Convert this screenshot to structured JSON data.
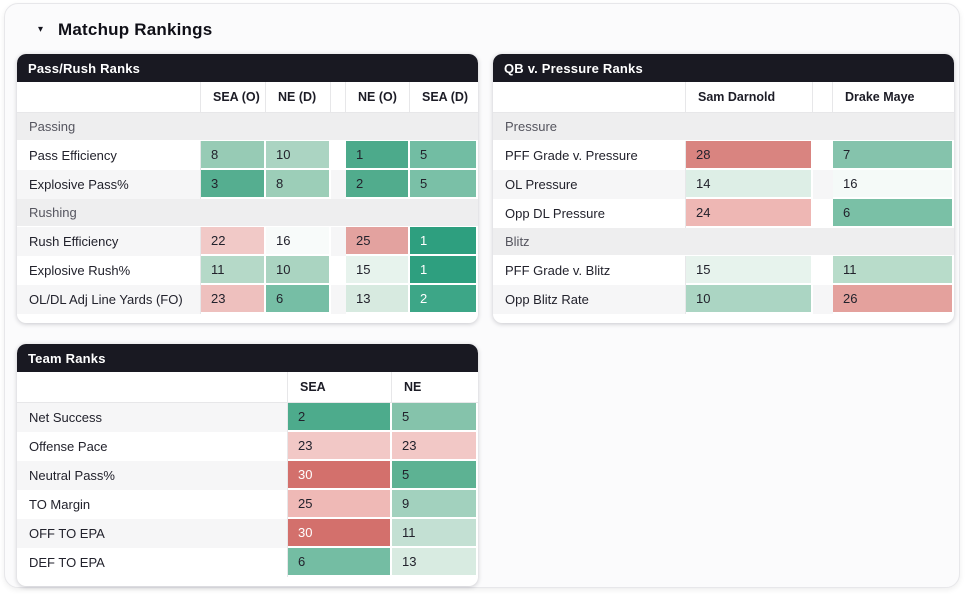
{
  "page": {
    "title": "Matchup Rankings",
    "collapse_icon": "▾"
  },
  "colors": {
    "table_header_bg": "#191922",
    "table_header_text": "#ffffff",
    "section_bg": "#eeeeef",
    "stripe_bg": "#f6f6f7",
    "default_cell_text": "#22222c",
    "white_cell_text": "#ffffff",
    "green_extreme": "#2e9f7f",
    "red_extreme": "#d3706c"
  },
  "tables": [
    {
      "title": "Pass/Rush Ranks",
      "columns": [
        {
          "label": "SEA (O)"
        },
        {
          "label": "NE (D)"
        },
        {
          "gap": true
        },
        {
          "label": "NE (O)"
        },
        {
          "label": "SEA (D)"
        }
      ],
      "rows": [
        {
          "type": "section",
          "label": "Passing"
        },
        {
          "type": "data",
          "label": "Pass Efficiency",
          "cells": [
            {
              "v": "8",
              "bg": "#97cbb5"
            },
            {
              "v": "10",
              "bg": "#abd4c2"
            },
            null,
            {
              "v": "1",
              "bg": "#4caa8b"
            },
            {
              "v": "5",
              "bg": "#72bda3"
            }
          ]
        },
        {
          "type": "data",
          "label": "Explosive Pass%",
          "cells": [
            {
              "v": "3",
              "bg": "#55ae90"
            },
            {
              "v": "8",
              "bg": "#9cceb8"
            },
            null,
            {
              "v": "2",
              "bg": "#51ac8d"
            },
            {
              "v": "5",
              "bg": "#7ac0a7"
            }
          ]
        },
        {
          "type": "section",
          "label": "Rushing"
        },
        {
          "type": "data",
          "label": "Rush Efficiency",
          "cells": [
            {
              "v": "22",
              "bg": "#f1c9c7"
            },
            {
              "v": "16",
              "bg": "#f8fbfa"
            },
            null,
            {
              "v": "25",
              "bg": "#e3a29f"
            },
            {
              "v": "1",
              "bg": "#2e9f7f",
              "fg": "#ffffff"
            }
          ]
        },
        {
          "type": "data",
          "label": "Explosive Rush%",
          "cells": [
            {
              "v": "11",
              "bg": "#b5d9c8"
            },
            {
              "v": "10",
              "bg": "#aad4c1"
            },
            null,
            {
              "v": "15",
              "bg": "#e7f3ed"
            },
            {
              "v": "1",
              "bg": "#2e9f7f",
              "fg": "#ffffff"
            }
          ]
        },
        {
          "type": "data",
          "label": "OL/DL Adj Line Yards (FO)",
          "cells": [
            {
              "v": "23",
              "bg": "#eec0be"
            },
            {
              "v": "6",
              "bg": "#76bea5"
            },
            null,
            {
              "v": "13",
              "bg": "#d7eae0"
            },
            {
              "v": "2",
              "bg": "#3da687",
              "fg": "#ffffff"
            }
          ]
        }
      ]
    },
    {
      "title": "QB v. Pressure Ranks",
      "columns": [
        {
          "label": "Sam Darnold"
        },
        {
          "gap": true
        },
        {
          "label": "Drake Maye"
        }
      ],
      "rows": [
        {
          "type": "section",
          "label": "Pressure"
        },
        {
          "type": "data",
          "label": "PFF Grade v. Pressure",
          "cells": [
            {
              "v": "28",
              "bg": "#d98480"
            },
            null,
            {
              "v": "7",
              "bg": "#85c3ac"
            }
          ]
        },
        {
          "type": "data",
          "label": "OL Pressure",
          "cells": [
            {
              "v": "14",
              "bg": "#ddeee6"
            },
            null,
            {
              "v": "16",
              "bg": "#f5faf8"
            }
          ]
        },
        {
          "type": "data",
          "label": "Opp DL Pressure",
          "cells": [
            {
              "v": "24",
              "bg": "#eeb7b4"
            },
            null,
            {
              "v": "6",
              "bg": "#7ac0a6"
            }
          ]
        },
        {
          "type": "section",
          "label": "Blitz"
        },
        {
          "type": "data",
          "label": "PFF Grade v. Blitz",
          "cells": [
            {
              "v": "15",
              "bg": "#e7f3ed"
            },
            null,
            {
              "v": "11",
              "bg": "#b8dcca"
            }
          ]
        },
        {
          "type": "data",
          "label": "Opp Blitz Rate",
          "cells": [
            {
              "v": "10",
              "bg": "#abd5c3"
            },
            null,
            {
              "v": "26",
              "bg": "#e4a19d"
            }
          ]
        }
      ]
    },
    {
      "title": "Team Ranks",
      "columns": [
        {
          "label": "SEA"
        },
        {
          "label": "NE"
        }
      ],
      "rows": [
        {
          "type": "data",
          "label": "Net Success",
          "cells": [
            {
              "v": "2",
              "bg": "#4dab8c"
            },
            {
              "v": "5",
              "bg": "#85c3ab"
            }
          ]
        },
        {
          "type": "data",
          "label": "Offense Pace",
          "cells": [
            {
              "v": "23",
              "bg": "#f2c8c6"
            },
            {
              "v": "23",
              "bg": "#f2c8c6"
            }
          ]
        },
        {
          "type": "data",
          "label": "Neutral Pass%",
          "cells": [
            {
              "v": "30",
              "bg": "#d3706c",
              "fg": "#ffffff"
            },
            {
              "v": "5",
              "bg": "#5db293"
            }
          ]
        },
        {
          "type": "data",
          "label": "TO Margin",
          "cells": [
            {
              "v": "25",
              "bg": "#efb9b6"
            },
            {
              "v": "9",
              "bg": "#a2d1be"
            }
          ]
        },
        {
          "type": "data",
          "label": "OFF TO EPA",
          "cells": [
            {
              "v": "30",
              "bg": "#d3706c",
              "fg": "#ffffff"
            },
            {
              "v": "11",
              "bg": "#c3e0d3"
            }
          ]
        },
        {
          "type": "data",
          "label": "DEF TO EPA",
          "cells": [
            {
              "v": "6",
              "bg": "#74bda3"
            },
            {
              "v": "13",
              "bg": "#d8ebe1"
            }
          ]
        }
      ]
    }
  ]
}
